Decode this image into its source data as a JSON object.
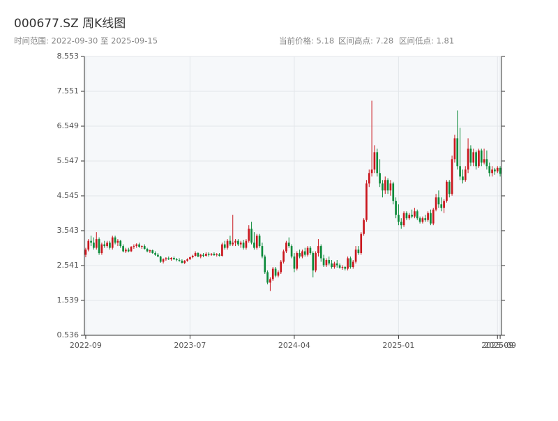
{
  "chart_data": {
    "type": "candlestick",
    "title": "000677.SZ 周K线图",
    "subtitle": "时间范围: 2022-09-30 至 2025-09-15",
    "annotations": [
      "当前价格: 5.18",
      "区间高点: 7.28",
      "区间低点: 1.81"
    ],
    "up_color": "#c9161d",
    "down_color": "#0c8a3a",
    "grid": true,
    "ylim": [
      0.536,
      8.553
    ],
    "yticks": [
      0.536,
      1.539,
      2.541,
      3.543,
      4.545,
      5.547,
      6.549,
      7.551,
      8.553
    ],
    "categories": [
      "2022-09",
      null,
      null,
      null,
      null,
      null,
      null,
      null,
      null,
      null,
      null,
      null,
      null,
      null,
      null,
      null,
      null,
      null,
      null,
      null,
      null,
      null,
      null,
      null,
      null,
      null,
      null,
      null,
      null,
      null,
      null,
      null,
      null,
      null,
      null,
      null,
      null,
      null,
      null,
      "2023-07",
      null,
      null,
      null,
      null,
      null,
      null,
      null,
      null,
      null,
      null,
      null,
      null,
      null,
      null,
      null,
      null,
      null,
      null,
      null,
      null,
      null,
      null,
      null,
      null,
      null,
      null,
      null,
      null,
      null,
      null,
      null,
      null,
      null,
      null,
      null,
      null,
      null,
      null,
      "2024-04",
      null,
      null,
      null,
      null,
      null,
      null,
      null,
      null,
      null,
      null,
      null,
      null,
      null,
      null,
      null,
      null,
      null,
      null,
      null,
      null,
      null,
      null,
      null,
      null,
      null,
      null,
      null,
      null,
      null,
      null,
      null,
      null,
      null,
      null,
      null,
      null,
      null,
      null,
      "2025-01",
      null,
      null,
      null,
      null,
      null,
      null,
      null,
      null,
      null,
      null,
      null,
      null,
      null,
      null,
      null,
      null,
      null,
      null,
      null,
      null,
      null,
      null,
      null,
      null,
      null,
      null,
      null,
      null,
      null,
      null,
      null,
      null,
      null,
      null,
      null,
      null,
      "2025-09",
      "2025-09"
    ],
    "values": [
      [
        2.85,
        3.05,
        2.78,
        3.0
      ],
      [
        3.0,
        3.3,
        2.95,
        3.25
      ],
      [
        3.25,
        3.4,
        3.1,
        3.2
      ],
      [
        3.2,
        3.35,
        3.0,
        3.05
      ],
      [
        3.05,
        3.5,
        3.0,
        3.3
      ],
      [
        3.3,
        3.35,
        2.85,
        2.9
      ],
      [
        2.9,
        3.2,
        2.85,
        3.15
      ],
      [
        3.15,
        3.25,
        3.05,
        3.1
      ],
      [
        3.1,
        3.25,
        3.05,
        3.2
      ],
      [
        3.2,
        3.25,
        3.0,
        3.05
      ],
      [
        3.05,
        3.4,
        3.0,
        3.35
      ],
      [
        3.35,
        3.4,
        3.15,
        3.2
      ],
      [
        3.2,
        3.3,
        3.1,
        3.25
      ],
      [
        3.25,
        3.28,
        3.05,
        3.1
      ],
      [
        3.1,
        3.15,
        2.92,
        2.95
      ],
      [
        2.95,
        3.05,
        2.9,
        3.0
      ],
      [
        3.0,
        3.05,
        2.92,
        2.95
      ],
      [
        2.95,
        3.1,
        2.93,
        3.08
      ],
      [
        3.08,
        3.15,
        3.02,
        3.1
      ],
      [
        3.1,
        3.18,
        3.05,
        3.15
      ],
      [
        3.15,
        3.2,
        3.05,
        3.08
      ],
      [
        3.08,
        3.12,
        3.02,
        3.1
      ],
      [
        3.1,
        3.15,
        3.0,
        3.02
      ],
      [
        3.02,
        3.05,
        2.92,
        2.95
      ],
      [
        2.95,
        3.0,
        2.9,
        2.98
      ],
      [
        2.98,
        3.0,
        2.88,
        2.9
      ],
      [
        2.9,
        2.95,
        2.82,
        2.85
      ],
      [
        2.85,
        2.9,
        2.78,
        2.8
      ],
      [
        2.8,
        2.82,
        2.62,
        2.65
      ],
      [
        2.65,
        2.75,
        2.6,
        2.72
      ],
      [
        2.72,
        2.78,
        2.68,
        2.75
      ],
      [
        2.75,
        2.8,
        2.7,
        2.72
      ],
      [
        2.72,
        2.78,
        2.68,
        2.76
      ],
      [
        2.76,
        2.8,
        2.7,
        2.72
      ],
      [
        2.72,
        2.76,
        2.66,
        2.7
      ],
      [
        2.7,
        2.75,
        2.65,
        2.68
      ],
      [
        2.68,
        2.72,
        2.6,
        2.62
      ],
      [
        2.62,
        2.7,
        2.58,
        2.68
      ],
      [
        2.68,
        2.75,
        2.65,
        2.72
      ],
      [
        2.72,
        2.8,
        2.7,
        2.78
      ],
      [
        2.78,
        2.85,
        2.75,
        2.82
      ],
      [
        2.82,
        2.95,
        2.8,
        2.9
      ],
      [
        2.9,
        2.92,
        2.78,
        2.8
      ],
      [
        2.8,
        2.88,
        2.75,
        2.85
      ],
      [
        2.85,
        2.9,
        2.78,
        2.82
      ],
      [
        2.82,
        2.92,
        2.8,
        2.88
      ],
      [
        2.88,
        2.92,
        2.8,
        2.85
      ],
      [
        2.85,
        2.9,
        2.82,
        2.88
      ],
      [
        2.88,
        2.92,
        2.82,
        2.84
      ],
      [
        2.84,
        2.9,
        2.8,
        2.86
      ],
      [
        2.86,
        2.9,
        2.8,
        2.82
      ],
      [
        2.82,
        3.2,
        2.8,
        3.15
      ],
      [
        3.15,
        3.25,
        3.0,
        3.05
      ],
      [
        3.05,
        3.3,
        3.0,
        3.25
      ],
      [
        3.25,
        3.4,
        3.1,
        3.15
      ],
      [
        3.15,
        4.0,
        3.1,
        3.2
      ],
      [
        3.2,
        3.3,
        3.1,
        3.25
      ],
      [
        3.25,
        3.3,
        3.1,
        3.15
      ],
      [
        3.15,
        3.25,
        3.05,
        3.2
      ],
      [
        3.2,
        3.28,
        3.0,
        3.05
      ],
      [
        3.05,
        3.3,
        3.0,
        3.25
      ],
      [
        3.25,
        3.7,
        3.2,
        3.6
      ],
      [
        3.6,
        3.8,
        3.15,
        3.2
      ],
      [
        3.2,
        3.5,
        3.0,
        3.05
      ],
      [
        3.05,
        3.45,
        3.0,
        3.4
      ],
      [
        3.4,
        3.45,
        3.05,
        3.1
      ],
      [
        3.1,
        3.2,
        2.75,
        2.8
      ],
      [
        2.8,
        2.85,
        2.3,
        2.35
      ],
      [
        2.35,
        2.4,
        2.0,
        2.05
      ],
      [
        2.05,
        2.2,
        1.81,
        2.15
      ],
      [
        2.15,
        2.5,
        2.1,
        2.45
      ],
      [
        2.45,
        2.5,
        2.2,
        2.25
      ],
      [
        2.25,
        2.4,
        2.2,
        2.35
      ],
      [
        2.35,
        2.7,
        2.3,
        2.65
      ],
      [
        2.65,
        3.0,
        2.6,
        2.95
      ],
      [
        2.95,
        3.25,
        2.9,
        3.2
      ],
      [
        3.2,
        3.35,
        3.05,
        3.1
      ],
      [
        3.1,
        3.15,
        2.75,
        2.8
      ],
      [
        2.8,
        2.9,
        2.35,
        2.45
      ],
      [
        2.45,
        2.95,
        2.4,
        2.9
      ],
      [
        2.9,
        3.0,
        2.75,
        2.8
      ],
      [
        2.8,
        3.0,
        2.75,
        2.95
      ],
      [
        2.95,
        3.05,
        2.8,
        2.85
      ],
      [
        2.85,
        3.1,
        2.8,
        3.05
      ],
      [
        3.05,
        3.1,
        2.85,
        2.9
      ],
      [
        2.9,
        2.95,
        2.2,
        2.4
      ],
      [
        2.4,
        2.95,
        2.35,
        2.9
      ],
      [
        2.9,
        3.3,
        2.8,
        3.1
      ],
      [
        3.1,
        3.15,
        2.65,
        2.75
      ],
      [
        2.75,
        2.85,
        2.5,
        2.55
      ],
      [
        2.55,
        2.75,
        2.5,
        2.7
      ],
      [
        2.7,
        2.8,
        2.55,
        2.6
      ],
      [
        2.6,
        2.7,
        2.45,
        2.5
      ],
      [
        2.5,
        2.65,
        2.45,
        2.6
      ],
      [
        2.6,
        2.7,
        2.48,
        2.55
      ],
      [
        2.55,
        2.6,
        2.45,
        2.48
      ],
      [
        2.48,
        2.55,
        2.42,
        2.5
      ],
      [
        2.5,
        2.52,
        2.4,
        2.45
      ],
      [
        2.45,
        2.8,
        2.4,
        2.75
      ],
      [
        2.75,
        2.8,
        2.45,
        2.5
      ],
      [
        2.5,
        2.7,
        2.45,
        2.65
      ],
      [
        2.65,
        3.1,
        2.6,
        3.0
      ],
      [
        3.0,
        3.1,
        2.85,
        2.9
      ],
      [
        2.9,
        3.5,
        2.85,
        3.45
      ],
      [
        3.45,
        3.9,
        3.4,
        3.85
      ],
      [
        3.85,
        5.0,
        3.8,
        4.9
      ],
      [
        4.9,
        5.3,
        4.8,
        5.2
      ],
      [
        5.2,
        7.28,
        5.1,
        5.3
      ],
      [
        5.3,
        6.0,
        5.2,
        5.8
      ],
      [
        5.8,
        5.9,
        5.1,
        5.2
      ],
      [
        5.2,
        5.6,
        4.8,
        4.9
      ],
      [
        4.9,
        5.0,
        4.5,
        4.7
      ],
      [
        4.7,
        5.1,
        4.6,
        5.0
      ],
      [
        5.0,
        5.05,
        4.6,
        4.7
      ],
      [
        4.7,
        5.0,
        4.55,
        4.9
      ],
      [
        4.9,
        4.95,
        4.3,
        4.4
      ],
      [
        4.4,
        4.5,
        3.9,
        4.0
      ],
      [
        4.0,
        4.3,
        3.7,
        3.8
      ],
      [
        3.8,
        3.9,
        3.6,
        3.7
      ],
      [
        3.7,
        4.1,
        3.65,
        4.05
      ],
      [
        4.05,
        4.1,
        3.85,
        3.9
      ],
      [
        3.9,
        4.05,
        3.85,
        4.0
      ],
      [
        4.0,
        4.15,
        3.9,
        3.95
      ],
      [
        3.95,
        4.2,
        3.9,
        4.1
      ],
      [
        4.1,
        4.15,
        3.85,
        3.9
      ],
      [
        3.9,
        3.95,
        3.75,
        3.8
      ],
      [
        3.8,
        3.95,
        3.75,
        3.9
      ],
      [
        3.9,
        4.0,
        3.8,
        3.85
      ],
      [
        3.85,
        4.1,
        3.8,
        4.05
      ],
      [
        4.05,
        4.15,
        3.7,
        3.75
      ],
      [
        3.75,
        4.2,
        3.7,
        4.15
      ],
      [
        4.15,
        4.6,
        4.1,
        4.5
      ],
      [
        4.5,
        4.7,
        4.2,
        4.3
      ],
      [
        4.3,
        4.5,
        4.1,
        4.2
      ],
      [
        4.2,
        4.45,
        4.05,
        4.4
      ],
      [
        4.4,
        5.0,
        4.35,
        4.95
      ],
      [
        4.95,
        5.0,
        4.5,
        4.6
      ],
      [
        4.6,
        5.7,
        4.55,
        5.6
      ],
      [
        5.6,
        6.3,
        5.5,
        6.2
      ],
      [
        6.2,
        7.0,
        5.3,
        5.4
      ],
      [
        5.4,
        6.5,
        5.0,
        5.1
      ],
      [
        5.1,
        5.3,
        4.9,
        5.0
      ],
      [
        5.0,
        5.4,
        4.95,
        5.3
      ],
      [
        5.3,
        6.2,
        5.2,
        5.9
      ],
      [
        5.9,
        6.0,
        5.4,
        5.5
      ],
      [
        5.5,
        5.9,
        5.4,
        5.8
      ],
      [
        5.8,
        5.85,
        5.3,
        5.4
      ],
      [
        5.4,
        5.9,
        5.35,
        5.85
      ],
      [
        5.85,
        5.9,
        5.4,
        5.5
      ],
      [
        5.5,
        5.9,
        5.45,
        5.6
      ],
      [
        5.6,
        5.85,
        5.3,
        5.4
      ],
      [
        5.4,
        5.5,
        5.1,
        5.2
      ],
      [
        5.2,
        5.4,
        5.1,
        5.3
      ],
      [
        5.3,
        5.35,
        5.15,
        5.25
      ],
      [
        5.25,
        5.4,
        5.2,
        5.35
      ],
      [
        5.35,
        5.4,
        5.1,
        5.18
      ]
    ]
  }
}
